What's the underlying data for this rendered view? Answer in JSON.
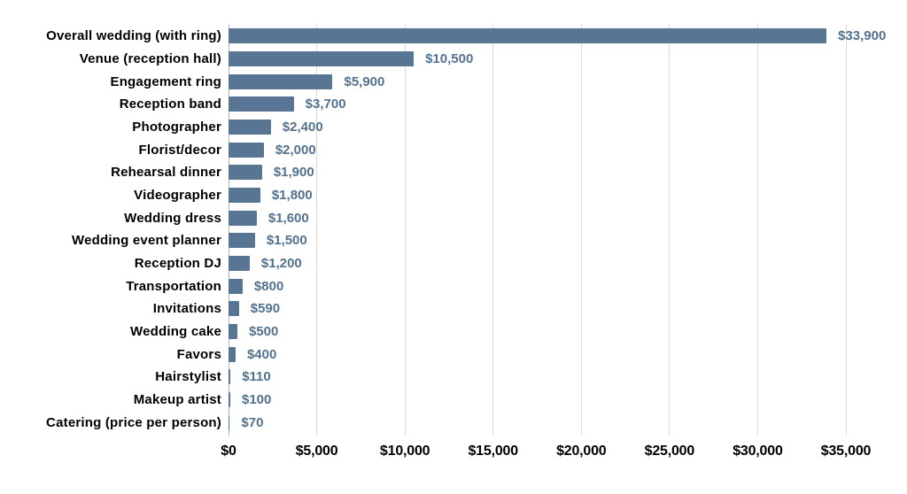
{
  "chart_data": {
    "type": "bar",
    "orientation": "horizontal",
    "title": "",
    "categories": [
      "Overall wedding (with ring)",
      "Venue (reception hall)",
      "Engagement ring",
      "Reception band",
      "Photographer",
      "Florist/decor",
      "Rehearsal dinner",
      "Videographer",
      "Wedding dress",
      "Wedding event planner",
      "Reception DJ",
      "Transportation",
      "Invitations",
      "Wedding cake",
      "Favors",
      "Hairstylist",
      "Makeup artist",
      "Catering (price per person)"
    ],
    "values": [
      33900,
      10500,
      5900,
      3700,
      2400,
      2000,
      1900,
      1800,
      1600,
      1500,
      1200,
      800,
      590,
      500,
      400,
      110,
      100,
      70
    ],
    "value_labels": [
      "$33,900",
      "$10,500",
      "$5,900",
      "$3,700",
      "$2,400",
      "$2,000",
      "$1,900",
      "$1,800",
      "$1,600",
      "$1,500",
      "$1,200",
      "$800",
      "$590",
      "$500",
      "$400",
      "$110",
      "$100",
      "$70"
    ],
    "x_tick_labels": [
      "$0",
      "$5,000",
      "$10,000",
      "$15,000",
      "$20,000",
      "$25,000",
      "$30,000",
      "$35,000"
    ],
    "xlim": [
      0,
      35000
    ],
    "x_tick_step": 5000,
    "grid": "vertical",
    "legend": "none",
    "xlabel": "",
    "ylabel": "",
    "colors": {
      "bar": "#587593",
      "value_label": "#52718f",
      "gridline": "#d9d9d9",
      "axis_line": "#b3b3b3",
      "category_label": "#000000",
      "tick_label": "#000000",
      "background": "#ffffff"
    }
  }
}
